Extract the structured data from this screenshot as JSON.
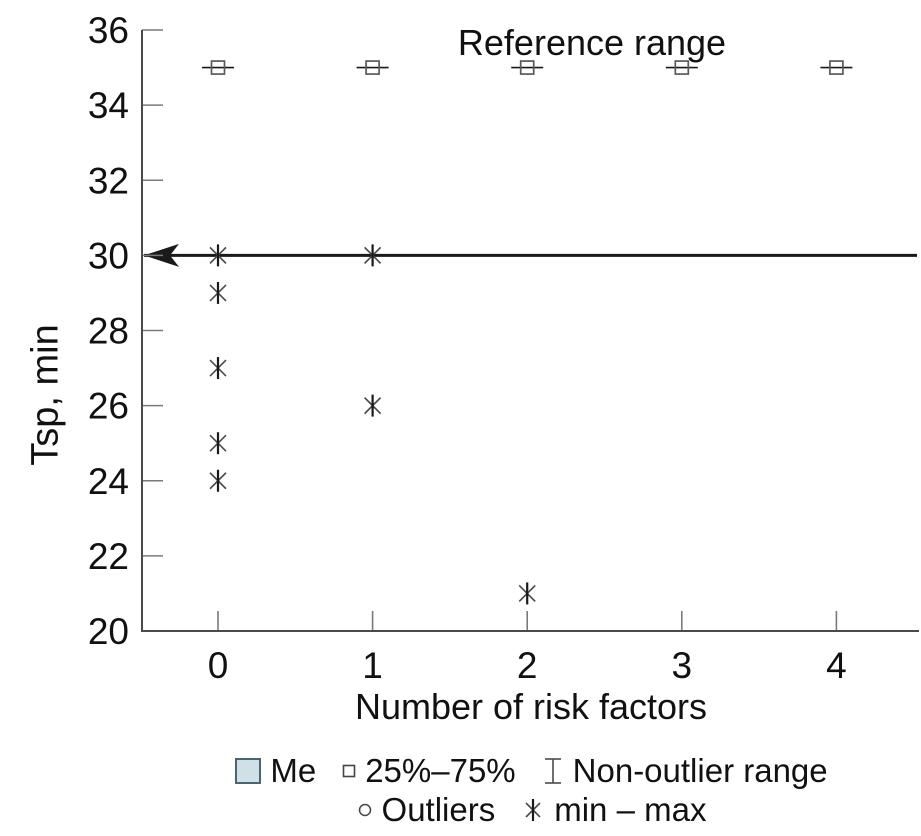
{
  "chart_data": {
    "type": "scatter",
    "title": "",
    "annotation": "Reference range",
    "xlabel": "Number of risk factors",
    "ylabel": "Tsp, min",
    "x_categories": [
      "0",
      "1",
      "2",
      "3",
      "4"
    ],
    "ylim": [
      20,
      36
    ],
    "yticks": [
      36,
      34,
      32,
      30,
      28,
      26,
      24,
      22,
      20
    ],
    "grid": false,
    "reference_line": {
      "y": 30,
      "arrow": "left"
    },
    "series": [
      {
        "name": "25%–75%",
        "marker": "square-whisker",
        "points": [
          [
            0,
            35
          ],
          [
            1,
            35
          ],
          [
            2,
            35
          ],
          [
            3,
            35
          ],
          [
            4,
            35
          ]
        ]
      },
      {
        "name": "min – max",
        "marker": "asterisk",
        "points": [
          [
            0,
            30
          ],
          [
            0,
            29
          ],
          [
            0,
            27
          ],
          [
            0,
            25
          ],
          [
            0,
            24
          ],
          [
            1,
            30
          ],
          [
            1,
            26
          ],
          [
            2,
            21
          ]
        ]
      }
    ],
    "legend": {
      "position": "bottom",
      "entries": [
        {
          "label": "Me",
          "marker": "filled-square",
          "color": "#cfe0e7"
        },
        {
          "label": "25%–75%",
          "marker": "open-square"
        },
        {
          "label": "Non-outlier range",
          "marker": "whisker"
        },
        {
          "label": "Outliers",
          "marker": "circle"
        },
        {
          "label": "min – max",
          "marker": "asterisk"
        }
      ]
    },
    "colors": {
      "axis": "#4a4a4a",
      "tick": "#7a7a7a",
      "text": "#111111",
      "marker_dark": "#1a1a1a",
      "marker_gray": "#4a4a4a",
      "box_stroke": "#5a5a5a",
      "me_fill": "#cfe0e7",
      "me_border": "#4a6570"
    }
  }
}
